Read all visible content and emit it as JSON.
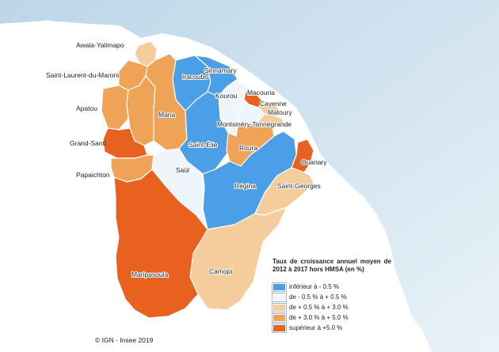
{
  "map": {
    "colors": {
      "sea_top": "#bcd6e8",
      "sea_bottom": "#e9f2f8",
      "land_background": "#ffffff"
    },
    "communes": [
      {
        "id": "awala-yalimapo",
        "name": "Awala-Yalimapo",
        "class": 3
      },
      {
        "id": "saint-laurent-du-maroni",
        "name": "Saint-Laurent-du-Maroni",
        "class": 4
      },
      {
        "id": "mana",
        "name": "Mana",
        "class": 4
      },
      {
        "id": "iracoubo",
        "name": "Iracoubo",
        "class": 1
      },
      {
        "id": "sinnamary",
        "name": "Sinnamary",
        "class": 1
      },
      {
        "id": "kourou",
        "name": "Kourou",
        "class": 2
      },
      {
        "id": "macouria",
        "name": "Macouria",
        "class": 5
      },
      {
        "id": "cayenne",
        "name": "Cayenne",
        "class": 3
      },
      {
        "id": "matoury",
        "name": "Matoury",
        "class": 3
      },
      {
        "id": "montsinery-tonnegrande",
        "name": "Montsinéry-Tonnegrande",
        "class": 2
      },
      {
        "id": "roura",
        "name": "Roura",
        "class": 4
      },
      {
        "id": "apatou",
        "name": "Apatou",
        "class": 4
      },
      {
        "id": "grand-santi",
        "name": "Grand-Santi",
        "class": 5
      },
      {
        "id": "papaichton",
        "name": "Papaichton",
        "class": 4
      },
      {
        "id": "saint-elie",
        "name": "Saint-Élie",
        "class": 1
      },
      {
        "id": "saul",
        "name": "Saül",
        "class": 2
      },
      {
        "id": "regina",
        "name": "Régina",
        "class": 1
      },
      {
        "id": "saint-georges",
        "name": "Saint-Georges",
        "class": 3
      },
      {
        "id": "ouanary",
        "name": "Ouanary",
        "class": 5
      },
      {
        "id": "camopi",
        "name": "Camopi",
        "class": 3
      },
      {
        "id": "maripasoula",
        "name": "Maripasoula",
        "class": 5
      }
    ]
  },
  "legend": {
    "title": "Taux de croissance annuel moyen de 2012 à 2017 hors HMSA (en %)",
    "classes": [
      {
        "class": 1,
        "label": "inférieur à - 0.5 %",
        "color": "#4b9fe6"
      },
      {
        "class": 2,
        "label": "de - 0.5 % à + 0.5 %",
        "color": "#eef5fb"
      },
      {
        "class": 3,
        "label": "de + 0.5 % à + 3.0 %",
        "color": "#f5cd9c"
      },
      {
        "class": 4,
        "label": "de + 3.0 %  à + 5.0 %",
        "color": "#efa356"
      },
      {
        "class": 5,
        "label": "supérieur à +5.0 %",
        "color": "#e8611e"
      }
    ]
  },
  "copyright": "© IGN - Insee 2019"
}
